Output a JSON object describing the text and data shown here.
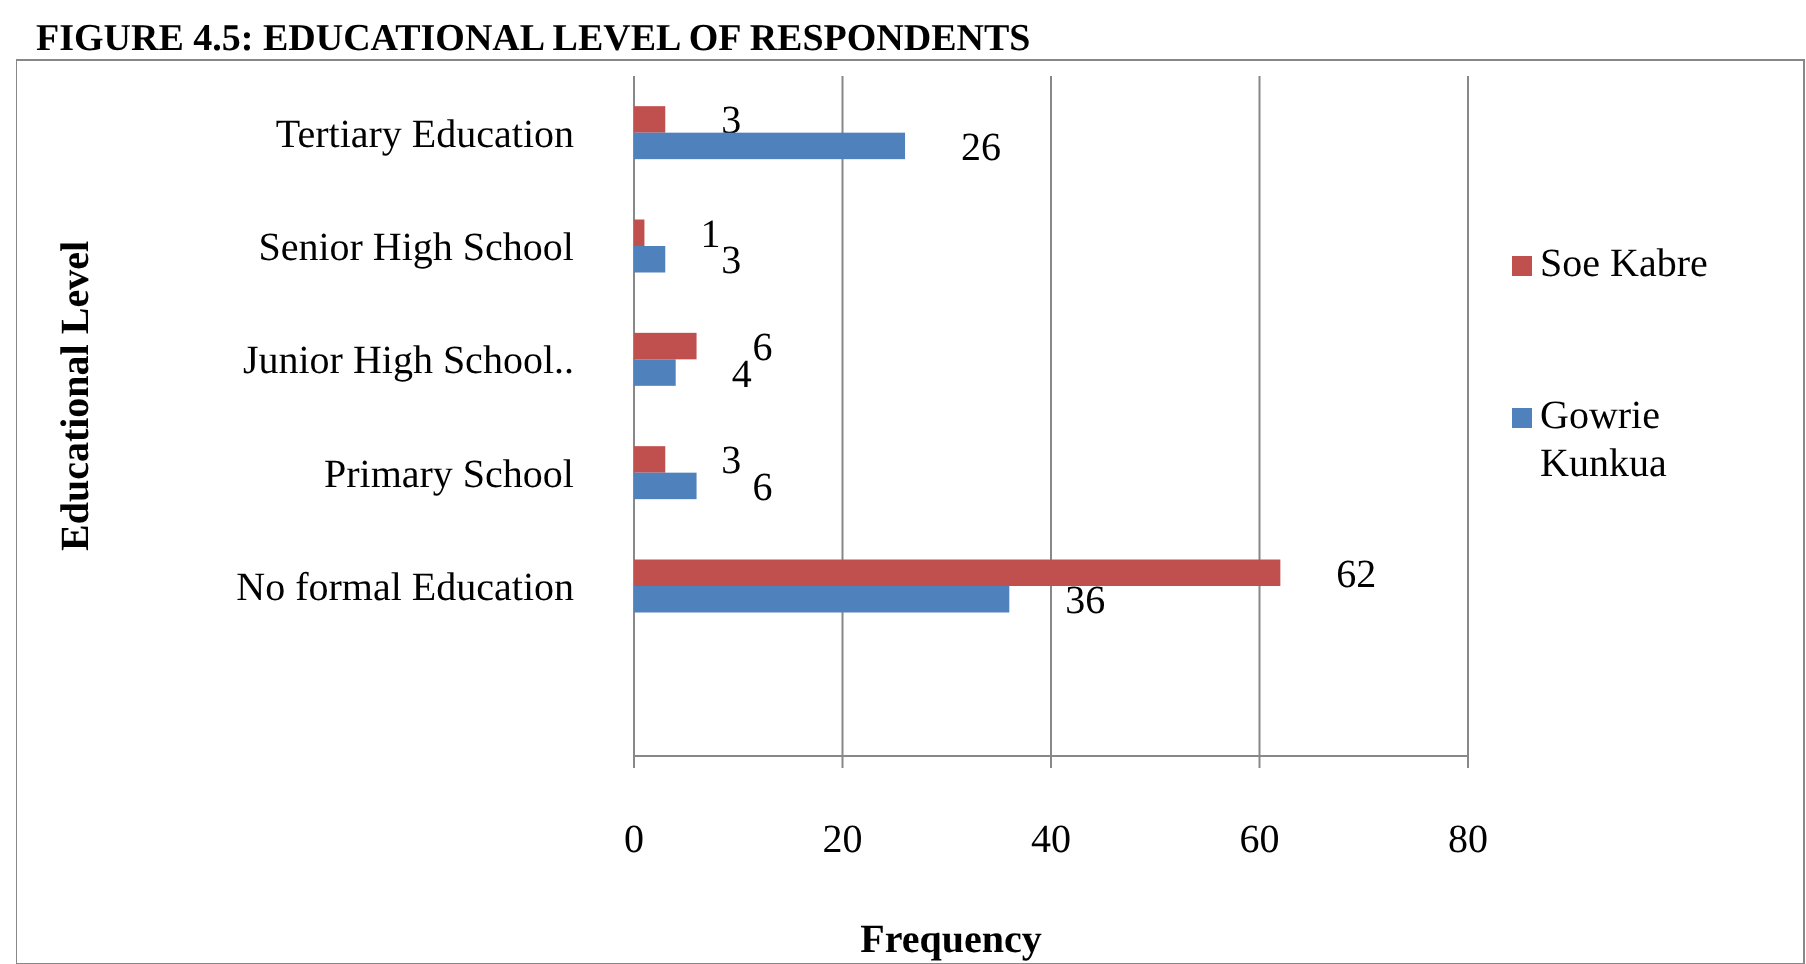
{
  "chart_data": {
    "type": "bar",
    "orientation": "horizontal",
    "title": "FIGURE 4.5: EDUCATIONAL LEVEL OF RESPONDENTS",
    "xlabel": "Frequency",
    "ylabel": "Educational Level",
    "categories": [
      "Tertiary Education",
      "Senior High School",
      "Junior High School..",
      "Primary School",
      "No formal Education",
      null
    ],
    "series": [
      {
        "name": "Soe Kabre",
        "color": "#c0504d",
        "values": [
          3,
          1,
          6,
          3,
          62,
          null
        ]
      },
      {
        "name": "Gowrie Kunkua",
        "color": "#4f81bd",
        "values": [
          26,
          3,
          4,
          6,
          36,
          null
        ]
      }
    ],
    "xlim": [
      0,
      80
    ],
    "xticks": [
      0,
      20,
      40,
      60,
      80
    ],
    "grid": "x",
    "legend": "right",
    "data_labels": true
  }
}
